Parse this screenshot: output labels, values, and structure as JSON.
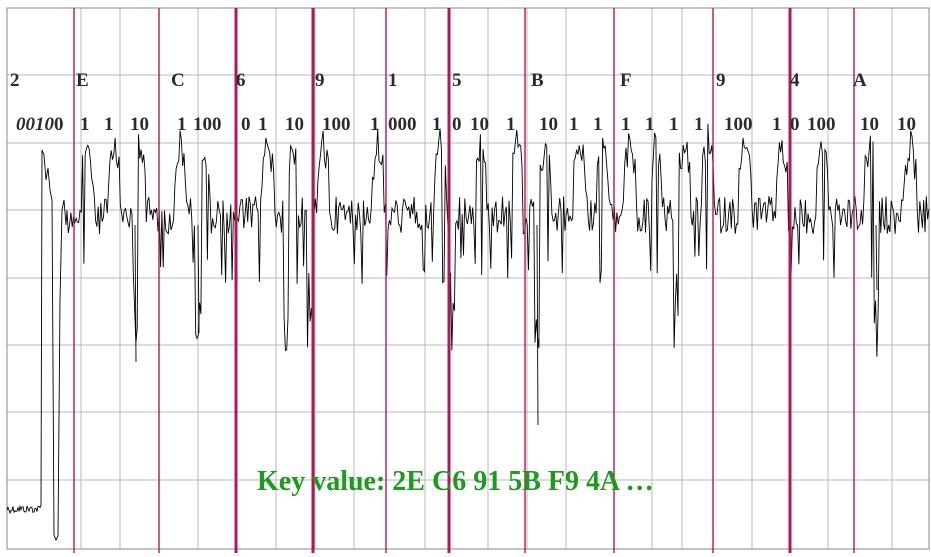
{
  "chart_data": {
    "type": "line",
    "nibbles": [
      "2",
      "E",
      "C",
      "6",
      "9",
      "1",
      "5",
      "B",
      "F",
      "9",
      "4",
      "A"
    ],
    "bit_labels": [
      {
        "text": "0010",
        "italic": true
      },
      {
        "text": "1"
      },
      {
        "text": "1"
      },
      {
        "text": "10"
      },
      {
        "text": "1"
      },
      {
        "text": "100"
      },
      {
        "text": "0"
      },
      {
        "text": "1"
      },
      {
        "text": "10"
      },
      {
        "text": "100"
      },
      {
        "text": "1"
      },
      {
        "text": "000"
      },
      {
        "text": "1"
      },
      {
        "text": "0"
      },
      {
        "text": "10"
      },
      {
        "text": "1"
      },
      {
        "text": "10"
      },
      {
        "text": "1"
      },
      {
        "text": "1"
      },
      {
        "text": "1"
      },
      {
        "text": "1"
      },
      {
        "text": "1"
      },
      {
        "text": "1"
      },
      {
        "text": "100"
      },
      {
        "text": "1"
      },
      {
        "text": "0"
      },
      {
        "text": "100"
      },
      {
        "text": "10"
      },
      {
        "text": "10"
      }
    ],
    "key_text": "Key value: 2E C6 91 5B F9 4A …",
    "grid": true,
    "colors": {
      "trace": "#000000",
      "grid": "#b8b8b8",
      "boundary": "#b0185a",
      "key_text": "#1e9a1e",
      "label_text": "#2b2b2b"
    }
  }
}
